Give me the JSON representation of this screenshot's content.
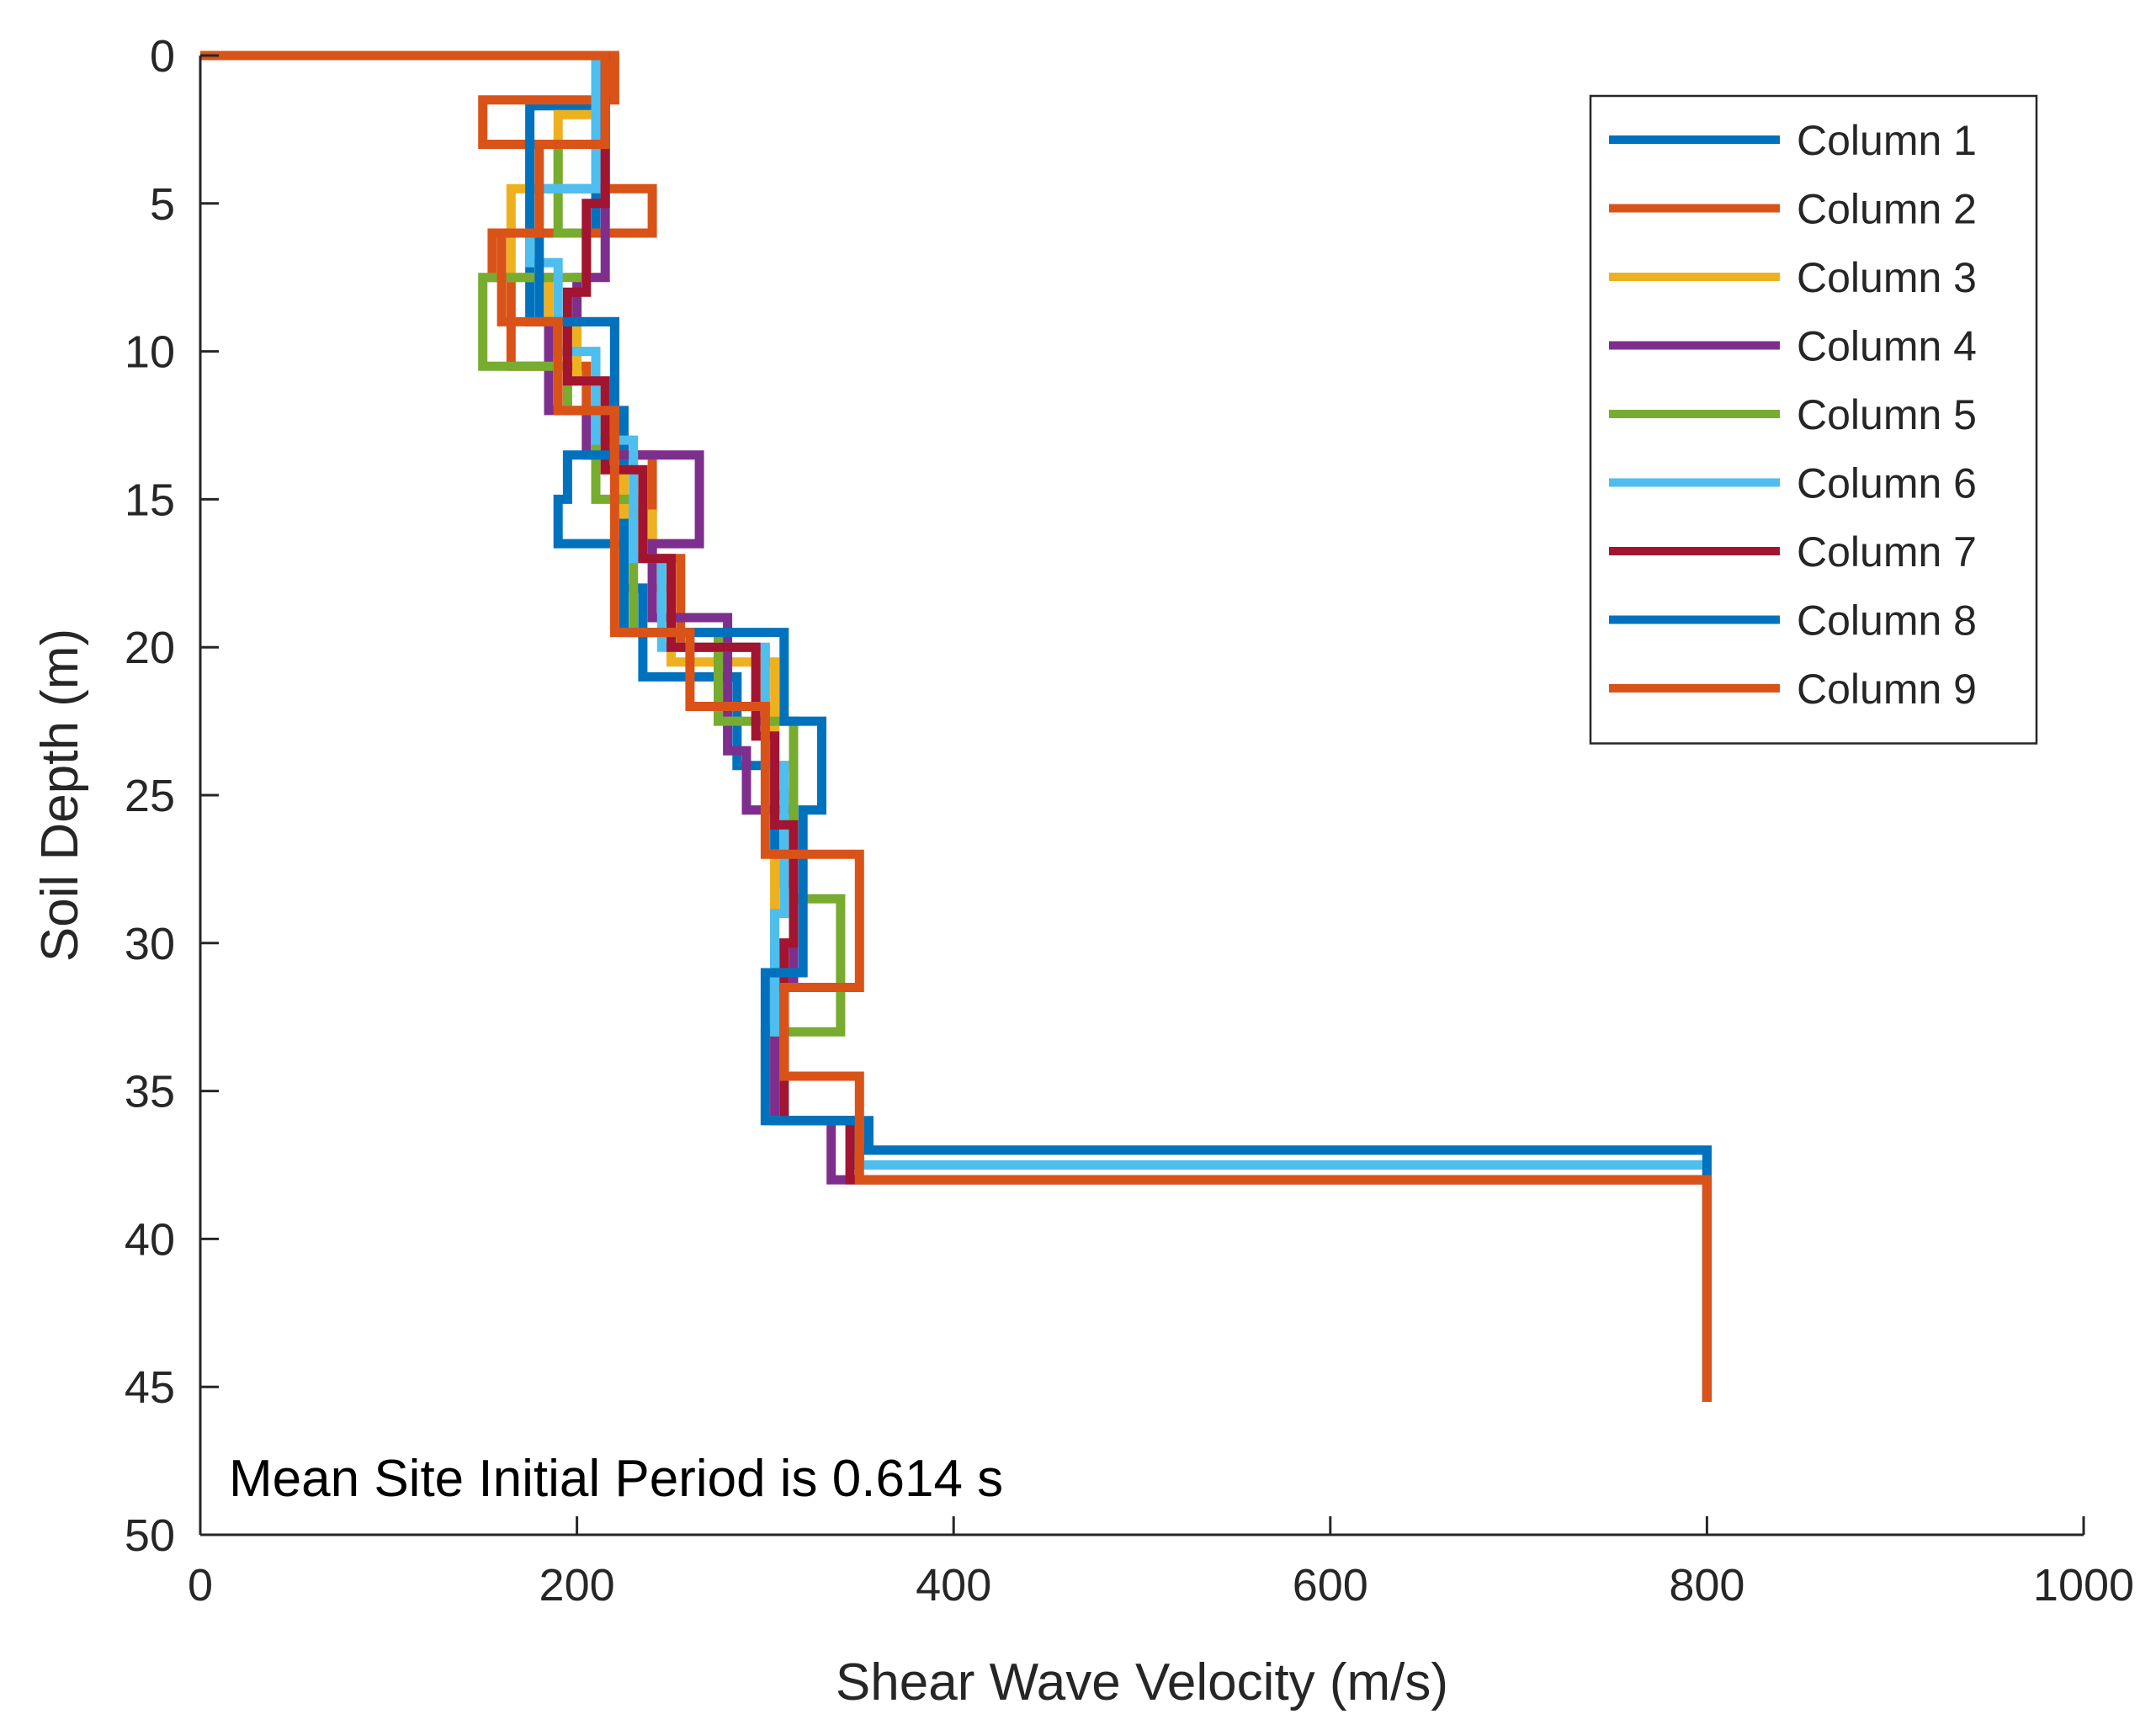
{
  "chart_data": {
    "type": "line",
    "title": "",
    "xlabel": "Shear Wave Velocity (m/s)",
    "ylabel": "Soil Depth (m)",
    "xlim": [
      0,
      1000
    ],
    "ylim": [
      0,
      50
    ],
    "y_reversed": true,
    "grid": false,
    "legend_position": "top-right",
    "xticks": [
      0,
      200,
      400,
      600,
      800,
      1000
    ],
    "yticks": [
      0,
      5,
      10,
      15,
      20,
      25,
      30,
      35,
      40,
      45,
      50
    ],
    "annotation": "Mean Site Initial Period is 0.614 s",
    "series": [
      {
        "name": "Column 1",
        "color": "#0072BD",
        "step_profile": [
          [
            0,
            0
          ],
          [
            210,
            0
          ],
          [
            210,
            1.7
          ],
          [
            175,
            1.7
          ],
          [
            175,
            3
          ],
          [
            210,
            3
          ],
          [
            210,
            6
          ],
          [
            175,
            6
          ],
          [
            175,
            9
          ],
          [
            220,
            9
          ],
          [
            220,
            12
          ],
          [
            225,
            12
          ],
          [
            225,
            15
          ],
          [
            225,
            18
          ],
          [
            235,
            18
          ],
          [
            235,
            21
          ],
          [
            285,
            21
          ],
          [
            285,
            24
          ],
          [
            305,
            24
          ],
          [
            305,
            27
          ],
          [
            315,
            27
          ],
          [
            315,
            30
          ],
          [
            305,
            30
          ],
          [
            305,
            36
          ],
          [
            355,
            36
          ],
          [
            355,
            37
          ],
          [
            800,
            37
          ],
          [
            800,
            45.5
          ]
        ]
      },
      {
        "name": "Column 2",
        "color": "#D95319",
        "step_profile": [
          [
            0,
            0
          ],
          [
            220,
            0
          ],
          [
            220,
            1.5
          ],
          [
            150,
            1.5
          ],
          [
            150,
            3
          ],
          [
            175,
            3
          ],
          [
            175,
            4.5
          ],
          [
            240,
            4.5
          ],
          [
            240,
            6
          ],
          [
            155,
            6
          ],
          [
            155,
            7.5
          ],
          [
            165,
            7.5
          ],
          [
            165,
            10.5
          ],
          [
            205,
            10.5
          ],
          [
            205,
            12
          ],
          [
            220,
            12
          ],
          [
            220,
            13.5
          ],
          [
            240,
            13.5
          ],
          [
            240,
            17
          ],
          [
            255,
            17
          ],
          [
            255,
            20
          ],
          [
            295,
            20
          ],
          [
            295,
            22
          ],
          [
            305,
            22
          ],
          [
            305,
            25
          ],
          [
            310,
            25
          ],
          [
            310,
            28
          ],
          [
            315,
            28
          ],
          [
            315,
            31
          ],
          [
            310,
            31
          ],
          [
            310,
            36
          ],
          [
            350,
            36
          ],
          [
            350,
            37.5
          ],
          [
            800,
            37.5
          ],
          [
            800,
            45.5
          ]
        ]
      },
      {
        "name": "Column 3",
        "color": "#EDB120",
        "step_profile": [
          [
            0,
            0
          ],
          [
            210,
            0
          ],
          [
            210,
            2
          ],
          [
            190,
            2
          ],
          [
            190,
            4.5
          ],
          [
            165,
            4.5
          ],
          [
            165,
            7.5
          ],
          [
            185,
            7.5
          ],
          [
            185,
            9
          ],
          [
            200,
            9
          ],
          [
            200,
            11
          ],
          [
            215,
            11
          ],
          [
            215,
            14
          ],
          [
            225,
            14
          ],
          [
            225,
            15.5
          ],
          [
            240,
            15.5
          ],
          [
            240,
            18
          ],
          [
            250,
            18
          ],
          [
            250,
            20.5
          ],
          [
            305,
            20.5
          ],
          [
            305,
            24
          ],
          [
            315,
            24
          ],
          [
            315,
            27
          ],
          [
            305,
            27
          ],
          [
            305,
            30
          ],
          [
            310,
            30
          ],
          [
            310,
            33
          ],
          [
            305,
            33
          ],
          [
            305,
            36
          ],
          [
            345,
            36
          ],
          [
            345,
            37.5
          ],
          [
            800,
            37.5
          ],
          [
            800,
            45.5
          ]
        ]
      },
      {
        "name": "Column 4",
        "color": "#7E2F8E",
        "step_profile": [
          [
            0,
            0
          ],
          [
            215,
            0
          ],
          [
            215,
            5
          ],
          [
            215,
            7.5
          ],
          [
            200,
            7.5
          ],
          [
            200,
            9
          ],
          [
            185,
            9
          ],
          [
            185,
            12
          ],
          [
            205,
            12
          ],
          [
            205,
            13.5
          ],
          [
            265,
            13.5
          ],
          [
            265,
            16.5
          ],
          [
            240,
            16.5
          ],
          [
            240,
            19
          ],
          [
            280,
            19
          ],
          [
            280,
            23.5
          ],
          [
            290,
            23.5
          ],
          [
            290,
            25.5
          ],
          [
            315,
            25.5
          ],
          [
            315,
            31.5
          ],
          [
            305,
            31.5
          ],
          [
            305,
            36
          ],
          [
            335,
            36
          ],
          [
            335,
            38
          ],
          [
            800,
            38
          ],
          [
            800,
            45.5
          ]
        ]
      },
      {
        "name": "Column 5",
        "color": "#77AC30",
        "step_profile": [
          [
            0,
            0
          ],
          [
            210,
            0
          ],
          [
            210,
            3
          ],
          [
            190,
            3
          ],
          [
            190,
            6
          ],
          [
            205,
            6
          ],
          [
            205,
            7.5
          ],
          [
            150,
            7.5
          ],
          [
            150,
            10.5
          ],
          [
            195,
            10.5
          ],
          [
            195,
            12
          ],
          [
            210,
            12
          ],
          [
            210,
            15
          ],
          [
            230,
            15
          ],
          [
            230,
            19.5
          ],
          [
            275,
            19.5
          ],
          [
            275,
            22.5
          ],
          [
            315,
            22.5
          ],
          [
            315,
            28.5
          ],
          [
            340,
            28.5
          ],
          [
            340,
            33
          ],
          [
            300,
            33
          ],
          [
            300,
            36
          ],
          [
            350,
            36
          ],
          [
            350,
            37.5
          ],
          [
            800,
            37.5
          ],
          [
            800,
            45.5
          ]
        ]
      },
      {
        "name": "Column 6",
        "color": "#4DBEEE",
        "step_profile": [
          [
            0,
            0
          ],
          [
            210,
            0
          ],
          [
            210,
            4.5
          ],
          [
            175,
            4.5
          ],
          [
            175,
            7
          ],
          [
            190,
            7
          ],
          [
            190,
            10
          ],
          [
            210,
            10
          ],
          [
            210,
            13
          ],
          [
            230,
            13
          ],
          [
            230,
            17
          ],
          [
            245,
            17
          ],
          [
            245,
            20
          ],
          [
            300,
            20
          ],
          [
            300,
            24
          ],
          [
            310,
            24
          ],
          [
            310,
            29
          ],
          [
            305,
            29
          ],
          [
            305,
            33
          ],
          [
            310,
            33
          ],
          [
            310,
            36
          ],
          [
            350,
            36
          ],
          [
            350,
            37.5
          ],
          [
            800,
            37.5
          ],
          [
            800,
            45.5
          ]
        ]
      },
      {
        "name": "Column 7",
        "color": "#A2142F",
        "step_profile": [
          [
            0,
            0
          ],
          [
            215,
            0
          ],
          [
            215,
            5
          ],
          [
            205,
            5
          ],
          [
            205,
            8
          ],
          [
            195,
            8
          ],
          [
            195,
            11
          ],
          [
            215,
            11
          ],
          [
            215,
            14
          ],
          [
            235,
            14
          ],
          [
            235,
            17
          ],
          [
            250,
            17
          ],
          [
            250,
            20
          ],
          [
            295,
            20
          ],
          [
            295,
            23
          ],
          [
            305,
            23
          ],
          [
            305,
            26
          ],
          [
            315,
            26
          ],
          [
            315,
            30
          ],
          [
            310,
            30
          ],
          [
            310,
            36
          ],
          [
            345,
            36
          ],
          [
            345,
            38
          ],
          [
            800,
            38
          ],
          [
            800,
            45.5
          ]
        ]
      },
      {
        "name": "Column 8",
        "color": "#0072BD",
        "step_profile": [
          [
            0,
            0
          ],
          [
            215,
            0
          ],
          [
            215,
            3
          ],
          [
            175,
            3
          ],
          [
            175,
            6
          ],
          [
            180,
            6
          ],
          [
            180,
            9
          ],
          [
            220,
            9
          ],
          [
            220,
            13.5
          ],
          [
            195,
            13.5
          ],
          [
            195,
            15
          ],
          [
            190,
            15
          ],
          [
            190,
            16.5
          ],
          [
            225,
            16.5
          ],
          [
            225,
            19.5
          ],
          [
            310,
            19.5
          ],
          [
            310,
            22.5
          ],
          [
            330,
            22.5
          ],
          [
            330,
            25.5
          ],
          [
            320,
            25.5
          ],
          [
            320,
            31
          ],
          [
            300,
            31
          ],
          [
            300,
            36
          ],
          [
            350,
            36
          ],
          [
            350,
            37
          ],
          [
            800,
            37
          ],
          [
            800,
            45.5
          ]
        ]
      },
      {
        "name": "Column 9",
        "color": "#D95319",
        "step_profile": [
          [
            0,
            0
          ],
          [
            215,
            0
          ],
          [
            215,
            3
          ],
          [
            180,
            3
          ],
          [
            180,
            6
          ],
          [
            160,
            6
          ],
          [
            160,
            9
          ],
          [
            190,
            9
          ],
          [
            190,
            12
          ],
          [
            220,
            12
          ],
          [
            220,
            19.5
          ],
          [
            260,
            19.5
          ],
          [
            260,
            22
          ],
          [
            300,
            22
          ],
          [
            300,
            27
          ],
          [
            350,
            27
          ],
          [
            350,
            31.5
          ],
          [
            310,
            31.5
          ],
          [
            310,
            34.5
          ],
          [
            350,
            34.5
          ],
          [
            350,
            38
          ],
          [
            800,
            38
          ],
          [
            800,
            45.5
          ]
        ]
      }
    ]
  }
}
